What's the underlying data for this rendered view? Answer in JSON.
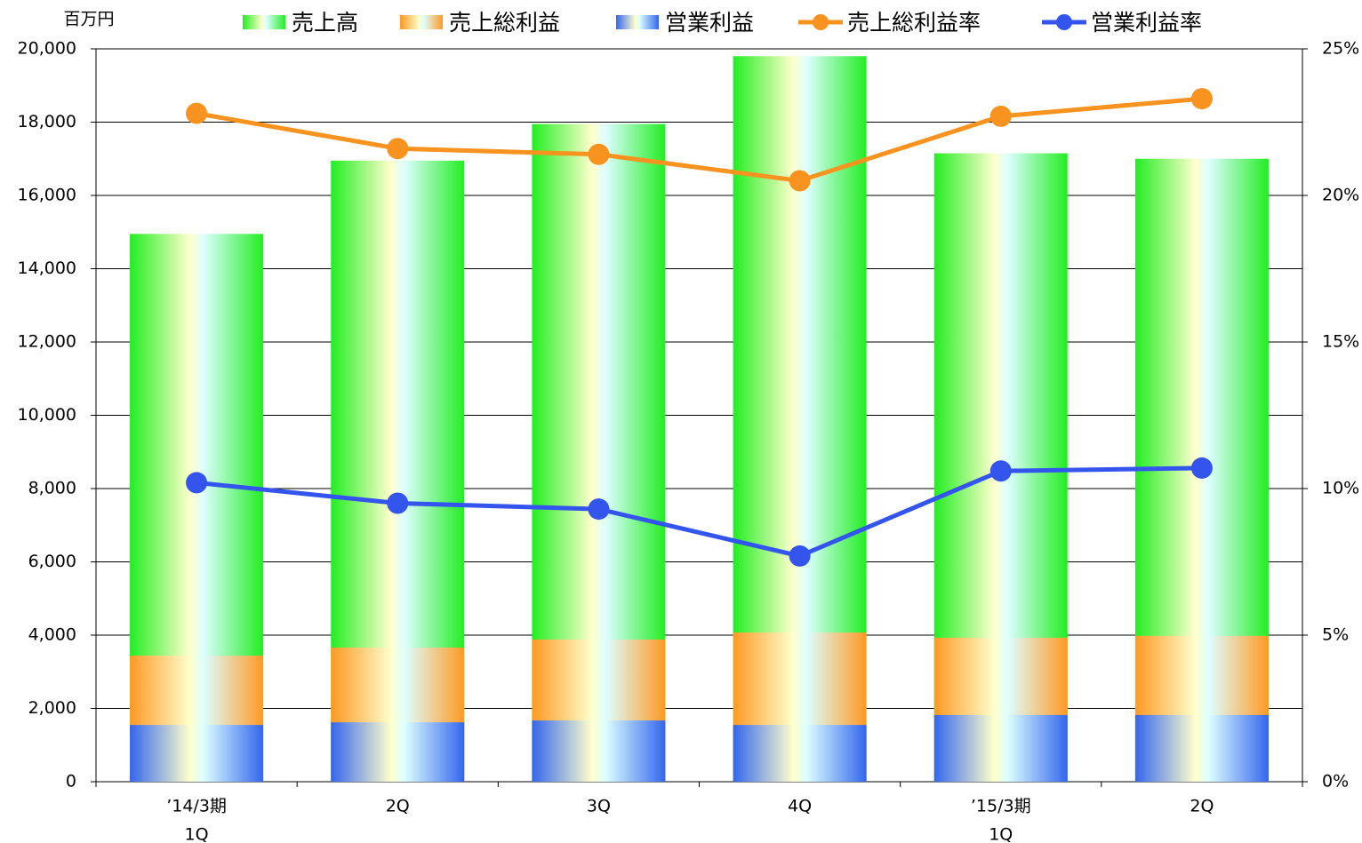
{
  "chart_data": {
    "type": "bar",
    "unit_label": "百万円",
    "categories": [
      [
        "’14/3期",
        "1Q"
      ],
      [
        "2Q"
      ],
      [
        "3Q"
      ],
      [
        "4Q"
      ],
      [
        "’15/3期",
        "1Q"
      ],
      [
        "2Q"
      ]
    ],
    "series": [
      {
        "name": "売上高",
        "type": "bar",
        "color": "#22ee22",
        "values": [
          14950,
          16950,
          17950,
          19800,
          17150,
          17000
        ]
      },
      {
        "name": "売上総利益",
        "type": "bar",
        "color": "#ff9922",
        "values": [
          3440,
          3660,
          3880,
          4070,
          3930,
          3980
        ]
      },
      {
        "name": "営業利益",
        "type": "bar",
        "color": "#3366ee",
        "values": [
          1550,
          1620,
          1670,
          1550,
          1820,
          1820
        ]
      },
      {
        "name": "売上総利益率",
        "type": "line",
        "axis": "y2",
        "color": "#f7931e",
        "values": [
          22.8,
          21.6,
          21.4,
          20.5,
          22.7,
          23.3
        ]
      },
      {
        "name": "営業利益率",
        "type": "line",
        "axis": "y2",
        "color": "#3355ee",
        "values": [
          10.2,
          9.5,
          9.3,
          7.7,
          10.6,
          10.7
        ]
      }
    ],
    "ylim": [
      0,
      20000
    ],
    "yticks": [
      0,
      {
        "value": 2000,
        "label": "2,000"
      },
      {
        "value": 4000,
        "label": "4,000"
      },
      {
        "value": 6000,
        "label": "6,000"
      },
      {
        "value": 8000,
        "label": "8,000"
      },
      {
        "value": 10000,
        "label": "10,000"
      },
      {
        "value": 12000,
        "label": "12,000"
      },
      {
        "value": 14000,
        "label": "14,000"
      },
      {
        "value": 16000,
        "label": "16,000"
      },
      {
        "value": 18000,
        "label": "18,000"
      },
      {
        "value": 20000,
        "label": "20,000"
      }
    ],
    "y2lim": [
      0,
      25
    ],
    "y2ticks": [
      {
        "value": 0,
        "label": "0%"
      },
      {
        "value": 5,
        "label": "5%"
      },
      {
        "value": 10,
        "label": "10%"
      },
      {
        "value": 15,
        "label": "15%"
      },
      {
        "value": 20,
        "label": "20%"
      },
      {
        "value": 25,
        "label": "25%"
      }
    ],
    "grid": true
  }
}
